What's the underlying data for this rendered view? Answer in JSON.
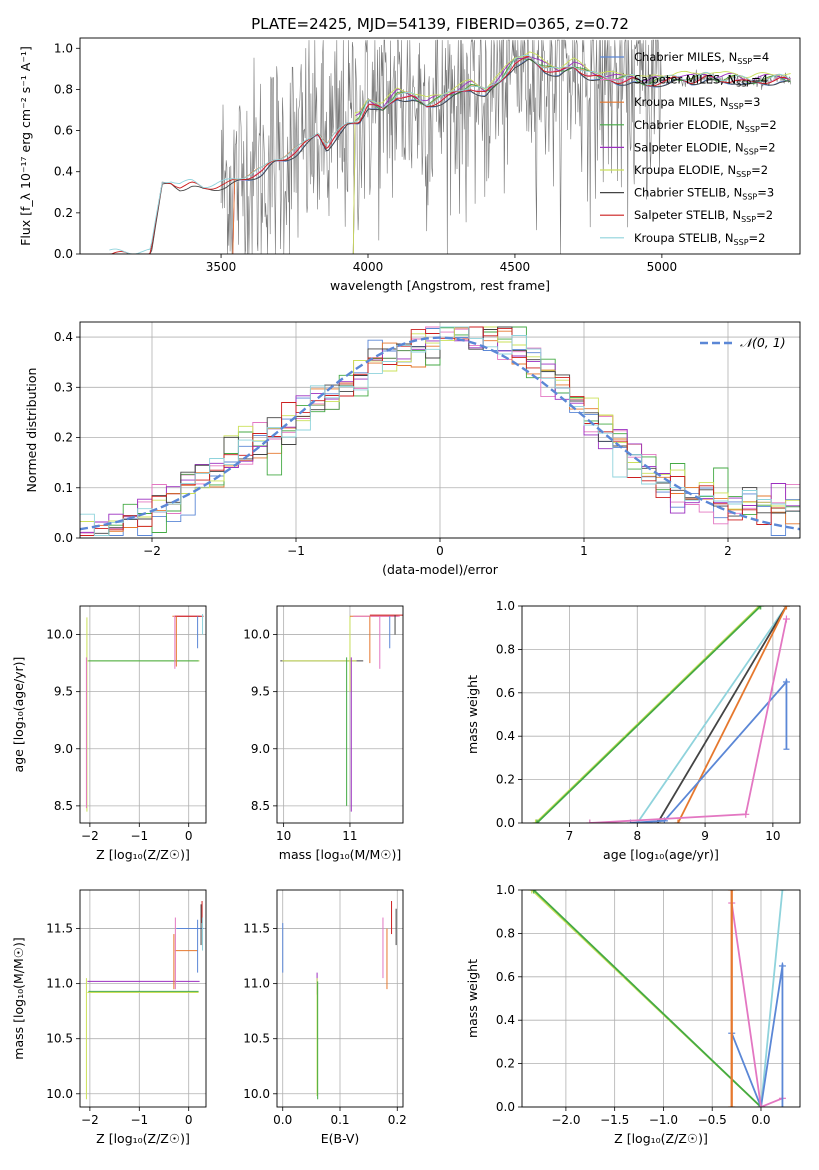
{
  "figure": {
    "title": "PLATE=2425, MJD=54139, FIBERID=0365, z=0.72",
    "colors": {
      "chabrier_miles": "#5b87d6",
      "salpeter_miles": "#e377c2",
      "kroupa_miles": "#e6782e",
      "chabrier_elodie": "#44aa44",
      "salpeter_elodie": "#9b2fc0",
      "kroupa_elodie": "#cbe05a",
      "chabrier_stelib": "#444444",
      "salpeter_stelib": "#cc1f1f",
      "kroupa_stelib": "#8fd3dc",
      "data": "#777777",
      "normal": "#5b87d6",
      "grid": "#b0b0b0"
    }
  },
  "chart_data": [
    {
      "id": "spectrum",
      "type": "line",
      "xlabel": "wavelength [Angstrom, rest frame]",
      "ylabel": "Flux [f_λ 10⁻¹⁷ erg cm⁻² s⁻¹ A⁻¹]",
      "xlim": [
        3020,
        5470
      ],
      "ylim": [
        0,
        1.05
      ],
      "xticks": [
        3500,
        4000,
        4500,
        5000
      ],
      "yticks": [
        0.0,
        0.2,
        0.4,
        0.6,
        0.8,
        1.0
      ],
      "grid": false,
      "legend_position": "right",
      "legend": [
        "Chabrier MILES, N_SSP=4",
        "Salpeter MILES, N_SSP=4",
        "Kroupa MILES, N_SSP=3",
        "Chabrier ELODIE, N_SSP=2",
        "Salpeter ELODIE, N_SSP=2",
        "Kroupa ELODIE, N_SSP=2",
        "Chabrier STELIB, N_SSP=3",
        "Salpeter STELIB, N_SSP=2",
        "Kroupa STELIB, N_SSP=2"
      ],
      "legend_colors": [
        "chabrier_miles",
        "salpeter_miles",
        "kroupa_miles",
        "chabrier_elodie",
        "salpeter_elodie",
        "kroupa_elodie",
        "chabrier_stelib",
        "salpeter_stelib",
        "kroupa_stelib"
      ],
      "model_continuum": {
        "x": [
          3120,
          3200,
          3260,
          3300,
          3330,
          3360,
          3400,
          3440,
          3480,
          3520,
          3560,
          3600,
          3640,
          3680,
          3720,
          3760,
          3800,
          3830,
          3860,
          3890,
          3930,
          3970,
          4000,
          4050,
          4100,
          4150,
          4200,
          4250,
          4300,
          4350,
          4400,
          4450,
          4500,
          4550,
          4600,
          4650,
          4700,
          4750,
          4800,
          4850,
          4900,
          4950,
          5000,
          5050,
          5100,
          5150,
          5200,
          5250,
          5300,
          5350,
          5400,
          5440
        ],
        "y": [
          0.0,
          0.0,
          0.0,
          0.34,
          0.35,
          0.33,
          0.34,
          0.32,
          0.33,
          0.34,
          0.36,
          0.38,
          0.4,
          0.45,
          0.47,
          0.5,
          0.55,
          0.59,
          0.52,
          0.57,
          0.63,
          0.65,
          0.73,
          0.7,
          0.77,
          0.76,
          0.72,
          0.75,
          0.78,
          0.81,
          0.78,
          0.84,
          0.93,
          0.95,
          0.9,
          0.88,
          0.91,
          0.87,
          0.85,
          0.84,
          0.85,
          0.82,
          0.84,
          0.85,
          0.84,
          0.86,
          0.84,
          0.85,
          0.83,
          0.84,
          0.85,
          0.84
        ]
      },
      "data_noise_range": [
        3500,
        5000
      ]
    },
    {
      "id": "residuals",
      "type": "histogram",
      "xlabel": "(data-model)/error",
      "ylabel": "Normed distribution",
      "xlim": [
        -2.5,
        2.5
      ],
      "ylim": [
        0,
        0.43
      ],
      "xticks": [
        -2,
        -1,
        0,
        1,
        2
      ],
      "yticks": [
        0.0,
        0.1,
        0.2,
        0.3,
        0.4
      ],
      "grid": true,
      "legend": [
        "𝒩(0, 1)"
      ],
      "legend_position": "top-right",
      "bin_width": 0.1
    },
    {
      "id": "age_vs_Z",
      "type": "errorbar",
      "xlabel": "Z [log₁₀(Z/Z☉)]",
      "ylabel": "age  [log₁₀(age/yr)]",
      "xlim": [
        -2.2,
        0.35
      ],
      "ylim": [
        8.35,
        10.25
      ],
      "xticks": [
        -2,
        -1,
        0
      ],
      "yticks": [
        8.5,
        9.0,
        9.5,
        10.0
      ],
      "grid": true
    },
    {
      "id": "age_vs_mass",
      "type": "errorbar",
      "xlabel": "mass [log₁₀(M/M☉)]",
      "xlim": [
        9.9,
        11.8
      ],
      "ylim": [
        8.35,
        10.25
      ],
      "xticks": [
        10,
        11
      ],
      "yticks": [
        8.5,
        9.0,
        9.5,
        10.0
      ],
      "grid": true
    },
    {
      "id": "weight_vs_age",
      "type": "line",
      "xlabel": "age  [log₁₀(age/yr)]",
      "ylabel": "mass weight",
      "xlim": [
        6.3,
        10.4
      ],
      "ylim": [
        0,
        1.0
      ],
      "xticks": [
        7,
        8,
        9,
        10
      ],
      "yticks": [
        0.0,
        0.2,
        0.4,
        0.6,
        0.8,
        1.0
      ],
      "grid": true,
      "series": [
        {
          "key": "kroupa_elodie",
          "x": [
            6.5,
            9.8
          ],
          "y": [
            0.0,
            1.0
          ]
        },
        {
          "key": "chabrier_elodie",
          "x": [
            6.52,
            9.82
          ],
          "y": [
            0.0,
            1.0
          ]
        },
        {
          "key": "kroupa_stelib",
          "x": [
            8.0,
            10.2
          ],
          "y": [
            0.0,
            1.0
          ]
        },
        {
          "key": "chabrier_stelib",
          "x": [
            8.3,
            10.2
          ],
          "y": [
            0.0,
            1.0
          ]
        },
        {
          "key": "kroupa_miles",
          "x": [
            8.6,
            10.2
          ],
          "y": [
            0.0,
            1.0
          ]
        },
        {
          "key": "chabrier_miles",
          "x": [
            7.9,
            8.4,
            10.2
          ],
          "y": [
            0.0,
            0.01,
            0.65
          ]
        },
        {
          "key": "salpeter_miles",
          "x": [
            7.3,
            9.6,
            10.2
          ],
          "y": [
            0.0,
            0.04,
            0.94
          ]
        }
      ]
    },
    {
      "id": "mass_vs_Z",
      "type": "errorbar",
      "xlabel": "Z [log₁₀(Z/Z☉)]",
      "ylabel": "mass [log₁₀(M/M☉)]",
      "xlim": [
        -2.2,
        0.35
      ],
      "ylim": [
        9.88,
        11.85
      ],
      "xticks": [
        -2,
        -1,
        0
      ],
      "yticks": [
        10.0,
        10.5,
        11.0,
        11.5
      ],
      "grid": true
    },
    {
      "id": "mass_vs_ebv",
      "type": "errorbar",
      "xlabel": "E(B-V)",
      "xlim": [
        -0.01,
        0.21
      ],
      "ylim": [
        9.88,
        11.85
      ],
      "xticks": [
        0.0,
        0.1,
        0.2
      ],
      "yticks": [
        10.0,
        10.5,
        11.0,
        11.5
      ],
      "grid": true
    },
    {
      "id": "weight_vs_Z",
      "type": "line",
      "xlabel": "Z [log₁₀(Z/Z☉)]",
      "ylabel": "mass weight",
      "xlim": [
        -2.45,
        0.4
      ],
      "ylim": [
        0,
        1.0
      ],
      "xticks": [
        -2.0,
        -1.5,
        -1.0,
        -0.5,
        0.0
      ],
      "yticks": [
        0.0,
        0.2,
        0.4,
        0.6,
        0.8,
        1.0
      ],
      "grid": true,
      "series": [
        {
          "key": "kroupa_elodie",
          "x": [
            -2.35,
            0.0
          ],
          "y": [
            1.0,
            0.0
          ]
        },
        {
          "key": "chabrier_elodie",
          "x": [
            -2.33,
            0.0
          ],
          "y": [
            1.0,
            0.0
          ]
        },
        {
          "key": "kroupa_stelib",
          "x": [
            0.0,
            0.22
          ],
          "y": [
            0.0,
            1.0
          ]
        },
        {
          "key": "chabrier_miles",
          "x": [
            -0.3,
            0.0,
            0.22
          ],
          "y": [
            0.34,
            0.0,
            0.65
          ]
        },
        {
          "key": "salpeter_miles",
          "x": [
            -0.3,
            0.0,
            0.22
          ],
          "y": [
            0.94,
            0.0,
            0.04
          ]
        },
        {
          "key": "kroupa_miles",
          "x": [
            -0.3,
            -0.3
          ],
          "y": [
            0.0,
            1.0
          ]
        }
      ]
    }
  ]
}
